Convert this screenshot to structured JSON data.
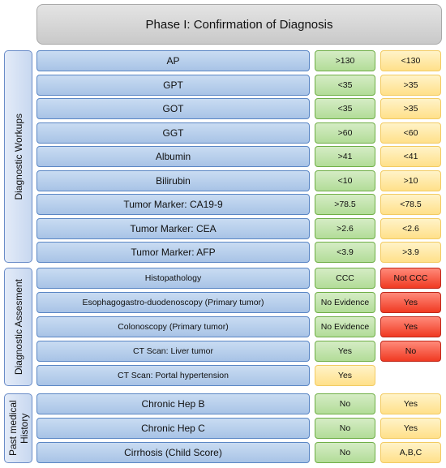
{
  "title": "Phase I: Confirmation of Diagnosis",
  "sections": [
    {
      "label": "Diagnostic Workups",
      "rows": [
        {
          "label": "AP",
          "cells": [
            {
              "text": ">130",
              "color": "green"
            },
            {
              "text": "<130",
              "color": "yellow"
            }
          ]
        },
        {
          "label": "GPT",
          "cells": [
            {
              "text": "<35",
              "color": "green"
            },
            {
              "text": ">35",
              "color": "yellow"
            }
          ]
        },
        {
          "label": "GOT",
          "cells": [
            {
              "text": "<35",
              "color": "green"
            },
            {
              "text": ">35",
              "color": "yellow"
            }
          ]
        },
        {
          "label": "GGT",
          "cells": [
            {
              "text": ">60",
              "color": "green"
            },
            {
              "text": "<60",
              "color": "yellow"
            }
          ]
        },
        {
          "label": "Albumin",
          "cells": [
            {
              "text": ">41",
              "color": "green"
            },
            {
              "text": "<41",
              "color": "yellow"
            }
          ]
        },
        {
          "label": "Bilirubin",
          "cells": [
            {
              "text": "<10",
              "color": "green"
            },
            {
              "text": ">10",
              "color": "yellow"
            }
          ]
        },
        {
          "label": "Tumor Marker: CA19-9",
          "cells": [
            {
              "text": ">78.5",
              "color": "green"
            },
            {
              "text": "<78.5",
              "color": "yellow"
            }
          ]
        },
        {
          "label": "Tumor Marker: CEA",
          "cells": [
            {
              "text": ">2.6",
              "color": "green"
            },
            {
              "text": "<2.6",
              "color": "yellow"
            }
          ]
        },
        {
          "label": "Tumor Marker: AFP",
          "cells": [
            {
              "text": "<3.9",
              "color": "green"
            },
            {
              "text": ">3.9",
              "color": "yellow"
            }
          ]
        }
      ]
    },
    {
      "label": "Diagnostic Assesment",
      "rows": [
        {
          "label": "Histopathology",
          "cells": [
            {
              "text": "CCC",
              "color": "green"
            },
            {
              "text": "Not CCC",
              "color": "red"
            }
          ]
        },
        {
          "label": "Esophagogastro-duodenoscopy (Primary tumor)",
          "cells": [
            {
              "text": "No Evidence",
              "color": "green"
            },
            {
              "text": "Yes",
              "color": "red"
            }
          ]
        },
        {
          "label": "Colonoscopy (Primary tumor)",
          "cells": [
            {
              "text": "No Evidence",
              "color": "green"
            },
            {
              "text": "Yes",
              "color": "red"
            }
          ]
        },
        {
          "label": "CT Scan: Liver tumor",
          "cells": [
            {
              "text": "Yes",
              "color": "green"
            },
            {
              "text": "No",
              "color": "red"
            }
          ]
        },
        {
          "label": "CT Scan: Portal hypertension",
          "cells": [
            {
              "text": "Yes",
              "color": "yellow"
            }
          ]
        }
      ]
    },
    {
      "label": "Past medical History",
      "rows": [
        {
          "label": "Chronic Hep B",
          "cells": [
            {
              "text": "No",
              "color": "green"
            },
            {
              "text": "Yes",
              "color": "yellow"
            }
          ]
        },
        {
          "label": "Chronic Hep C",
          "cells": [
            {
              "text": "No",
              "color": "green"
            },
            {
              "text": "Yes",
              "color": "yellow"
            }
          ]
        },
        {
          "label": "Cirrhosis (Child Score)",
          "cells": [
            {
              "text": "No",
              "color": "green"
            },
            {
              "text": "A,B,C",
              "color": "yellow"
            }
          ]
        }
      ]
    }
  ]
}
